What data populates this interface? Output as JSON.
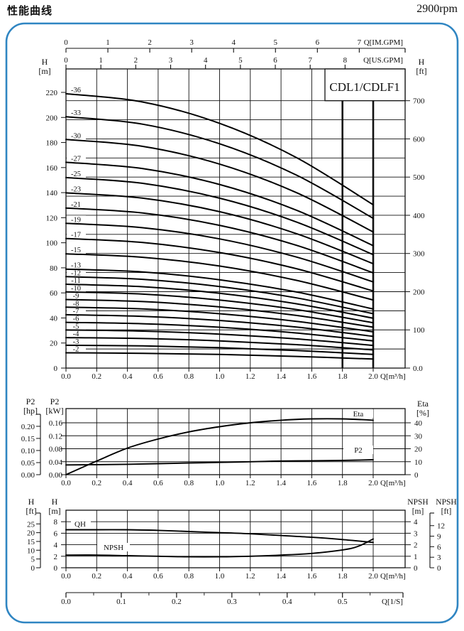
{
  "header": {
    "title": "性能曲线",
    "rpm": "2900rpm"
  },
  "model_label": "CDL1/CDLF1",
  "colors": {
    "border_blue": "#2f85c2",
    "ink": "#111111",
    "curve": "#000000"
  },
  "footer_scale": {
    "label": "Q[1/S]",
    "tick_labels": [
      "0.0",
      "0.1",
      "0.2",
      "0.3",
      "0.4",
      "0.5"
    ]
  },
  "chart_data": [
    {
      "id": "head-capacity",
      "type": "line",
      "title": "CDL1/CDLF1",
      "x_axis": {
        "label": "Q[m³/h]",
        "min": 0,
        "max": 2.0,
        "tick_labels": [
          "0.0",
          "0.2",
          "0.4",
          "0.6",
          "0.8",
          "1.0",
          "1.2",
          "1.4",
          "1.6",
          "1.8",
          "2.0"
        ],
        "bold_gridlines_at": [
          1.8,
          2.0
        ]
      },
      "top_scales": [
        {
          "label": "Q[IM.GPM]",
          "tick_labels": [
            "0",
            "1",
            "2",
            "3",
            "4",
            "5",
            "6",
            "7"
          ],
          "units_per_m3h": 3.6661
        },
        {
          "label": "Q[US.GPM]",
          "tick_labels": [
            "0",
            "1",
            "2",
            "3",
            "4",
            "5",
            "6",
            "7",
            "8"
          ],
          "units_per_m3h": 4.4029
        }
      ],
      "y_left": {
        "header": [
          "H",
          "[m]"
        ],
        "tick_labels": [
          "0",
          "20",
          "40",
          "60",
          "80",
          "100",
          "120",
          "140",
          "160",
          "180",
          "200",
          "220"
        ],
        "max_m": 220
      },
      "y_right": {
        "header": [
          "H",
          "[ft]"
        ],
        "tick_labels": [
          "0.0",
          "100",
          "200",
          "300",
          "400",
          "500",
          "600",
          "700"
        ],
        "gridline_step_ft": 50
      },
      "series_x_m3h": [
        0,
        0.5,
        1.0,
        1.5,
        2.0
      ],
      "series": [
        {
          "label": "-2",
          "stages": 2,
          "H_m": [
            12.2,
            11.8,
            10.9,
            9.3,
            7.2
          ]
        },
        {
          "label": "-3",
          "stages": 3,
          "H_m": [
            18.2,
            17.7,
            16.3,
            14.0,
            10.9
          ]
        },
        {
          "label": "-4",
          "stages": 4,
          "H_m": [
            24.3,
            23.6,
            21.7,
            18.7,
            14.5
          ]
        },
        {
          "label": "-5",
          "stages": 5,
          "H_m": [
            30.4,
            29.5,
            27.1,
            23.3,
            18.1
          ]
        },
        {
          "label": "-6",
          "stages": 6,
          "H_m": [
            36.5,
            35.4,
            32.6,
            28.0,
            21.7
          ]
        },
        {
          "label": "-7",
          "stages": 7,
          "H_m": [
            42.6,
            41.3,
            38.0,
            32.7,
            25.3
          ]
        },
        {
          "label": "-8",
          "stages": 8,
          "H_m": [
            48.6,
            47.2,
            43.4,
            37.3,
            29.0
          ]
        },
        {
          "label": "-9",
          "stages": 9,
          "H_m": [
            54.7,
            53.1,
            48.8,
            42.0,
            32.6
          ]
        },
        {
          "label": "-10",
          "stages": 10,
          "H_m": [
            60.8,
            59.0,
            54.3,
            46.7,
            36.2
          ]
        },
        {
          "label": "-11",
          "stages": 11,
          "H_m": [
            66.9,
            64.9,
            59.7,
            51.3,
            39.8
          ]
        },
        {
          "label": "-12",
          "stages": 12,
          "H_m": [
            73.0,
            70.8,
            65.1,
            56.0,
            43.4
          ]
        },
        {
          "label": "-13",
          "stages": 13,
          "H_m": [
            79.0,
            76.7,
            70.5,
            60.7,
            47.1
          ]
        },
        {
          "label": "-15",
          "stages": 15,
          "H_m": [
            91.2,
            88.4,
            81.4,
            70.0,
            54.3
          ]
        },
        {
          "label": "-17",
          "stages": 17,
          "H_m": [
            103.4,
            100.2,
            92.2,
            79.3,
            61.5
          ]
        },
        {
          "label": "-19",
          "stages": 19,
          "H_m": [
            115.5,
            112.0,
            103.1,
            88.6,
            68.8
          ]
        },
        {
          "label": "-21",
          "stages": 21,
          "H_m": [
            127.7,
            123.8,
            113.9,
            98.0,
            76.0
          ]
        },
        {
          "label": "-23",
          "stages": 23,
          "H_m": [
            139.8,
            135.6,
            124.8,
            107.3,
            83.3
          ]
        },
        {
          "label": "-25",
          "stages": 25,
          "H_m": [
            152.0,
            147.4,
            135.6,
            116.6,
            90.5
          ]
        },
        {
          "label": "-27",
          "stages": 27,
          "H_m": [
            164.2,
            159.2,
            146.5,
            126.0,
            97.7
          ]
        },
        {
          "label": "-30",
          "stages": 30,
          "H_m": [
            182.4,
            176.9,
            162.8,
            140.0,
            108.6
          ]
        },
        {
          "label": "-33",
          "stages": 33,
          "H_m": [
            200.6,
            194.6,
            179.0,
            154.0,
            119.5
          ]
        },
        {
          "label": "-36",
          "stages": 36,
          "H_m": [
            218.9,
            212.3,
            195.3,
            168.0,
            130.3
          ]
        }
      ]
    },
    {
      "id": "power-efficiency",
      "type": "line",
      "x_axis": {
        "label": "Q[m³/h]",
        "tick_labels": [
          "0.0",
          "0.2",
          "0.4",
          "0.6",
          "0.8",
          "1.0",
          "1.2",
          "1.4",
          "1.6",
          "1.8",
          "2.0"
        ]
      },
      "y_left_outer": {
        "header": [
          "P2",
          "[hp]"
        ],
        "tick_labels": [
          "0.00",
          "0.05",
          "0.10",
          "0.15",
          "0.20"
        ],
        "kw_per_hp": 0.7457
      },
      "y_left_inner": {
        "header": [
          "P2",
          "[kW]"
        ],
        "tick_labels": [
          "0.00",
          "0.04",
          "0.08",
          "0.12",
          "0.16"
        ]
      },
      "y_right": {
        "header": [
          "Eta",
          "[%]"
        ],
        "tick_labels": [
          "0",
          "10",
          "20",
          "30",
          "40"
        ]
      },
      "x_m3h": [
        0,
        0.2,
        0.4,
        0.6,
        0.8,
        1.0,
        1.2,
        1.4,
        1.6,
        1.8,
        2.0
      ],
      "series": [
        {
          "label": "Eta",
          "unit": "%",
          "values": [
            0,
            10.5,
            20.5,
            27.5,
            33,
            37,
            40,
            42,
            43,
            43,
            42
          ]
        },
        {
          "label": "P2",
          "unit": "kW",
          "values": [
            0.03,
            0.031,
            0.032,
            0.034,
            0.036,
            0.038,
            0.04,
            0.042,
            0.043,
            0.044,
            0.046
          ]
        }
      ]
    },
    {
      "id": "qh-npsh",
      "type": "line",
      "x_axis": {
        "label": "Q[m³/h]",
        "tick_labels": [
          "0.0",
          "0.2",
          "0.4",
          "0.6",
          "0.8",
          "1.0",
          "1.2",
          "1.4",
          "1.6",
          "1.8",
          "2.0"
        ]
      },
      "y_left_outer": {
        "header": [
          "H",
          "[ft]"
        ],
        "tick_labels": [
          "0",
          "5",
          "10",
          "15",
          "20",
          "25"
        ]
      },
      "y_left_inner": {
        "header": [
          "H",
          "[m]"
        ],
        "tick_labels": [
          "0",
          "2",
          "4",
          "6",
          "8"
        ]
      },
      "y_right_inner": {
        "header": [
          "NPSH",
          "[m]"
        ],
        "tick_labels": [
          "0",
          "1",
          "2",
          "3",
          "4"
        ]
      },
      "y_right_outer": {
        "header": [
          "NPSH",
          "[ft]"
        ],
        "tick_labels": [
          "0",
          "3",
          "6",
          "9",
          "12"
        ]
      },
      "series": [
        {
          "label": "QH",
          "unit": "m",
          "x_m3h": [
            0,
            0.2,
            0.4,
            0.6,
            0.8,
            1.0,
            1.2,
            1.4,
            1.6,
            1.8,
            2.0
          ],
          "values": [
            6.6,
            6.6,
            6.6,
            6.5,
            6.3,
            6.1,
            5.9,
            5.6,
            5.3,
            4.9,
            4.4
          ]
        },
        {
          "label": "NPSH",
          "unit": "m",
          "x_m3h": [
            0,
            0.2,
            0.4,
            0.6,
            0.8,
            1.0,
            1.2,
            1.4,
            1.6,
            1.8,
            1.9,
            2.0
          ],
          "values": [
            1.1,
            1.1,
            1.05,
            1.0,
            0.95,
            0.95,
            1.0,
            1.1,
            1.25,
            1.55,
            1.85,
            2.5
          ]
        }
      ]
    }
  ]
}
